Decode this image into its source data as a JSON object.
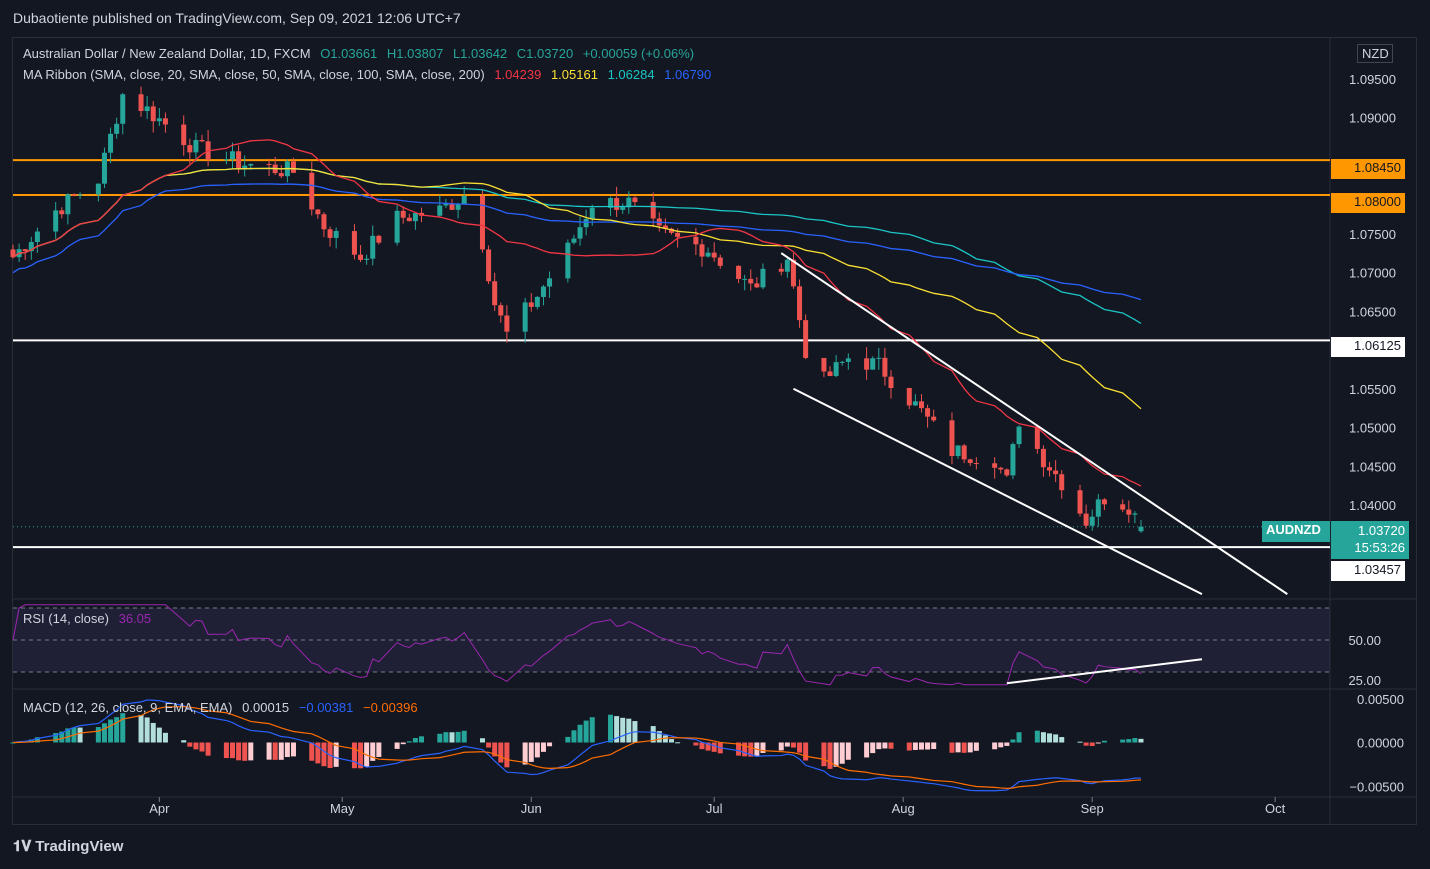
{
  "header": {
    "publisher": "Dubaotiente published on TradingView.com, Sep 09, 2021 12:06 UTC+7"
  },
  "legend": {
    "symbol_line": "Australian Dollar / New Zealand Dollar, 1D, FXCM",
    "o": "O1.03661",
    "h": "H1.03807",
    "l": "L1.03642",
    "c": "C1.03720",
    "chg": "+0.00059 (+0.06%)",
    "ma_line": "MA Ribbon (SMA, close, 20, SMA, close, 50, SMA, close, 100, SMA, close, 200)",
    "ma20": "1.04239",
    "ma50": "1.05161",
    "ma100": "1.06284",
    "ma200": "1.06790",
    "rsi_line": "RSI (14, close)",
    "rsi_val": "36.05",
    "macd_line": "MACD (12, 26, close, 9, EMA, EMA)",
    "macd_hist": "0.00015",
    "macd_val": "−0.00381",
    "macd_sig": "−0.00396"
  },
  "price_axis": {
    "currency": "NZD",
    "ticks": [
      "1.09500",
      "1.09000",
      "1.07500",
      "1.07000",
      "1.06500",
      "1.05500",
      "1.05000",
      "1.04500",
      "1.04000"
    ],
    "tick_values": [
      1.095,
      1.09,
      1.075,
      1.07,
      1.065,
      1.055,
      1.05,
      1.045,
      1.04
    ],
    "level_labels": [
      "1.08450",
      "1.08000",
      "1.06125",
      "1.03457"
    ],
    "last_symbol": "AUDNZD",
    "last_price": "1.03720",
    "countdown": "15:53:26"
  },
  "rsi_axis": {
    "ticks": [
      "50.00",
      "25.00"
    ],
    "tick_values": [
      50,
      25
    ]
  },
  "macd_axis": {
    "ticks": [
      "0.00500",
      "0.00000",
      "−0.00500"
    ],
    "tick_values": [
      0.005,
      0,
      -0.005
    ]
  },
  "time_axis": {
    "labels": [
      "Apr",
      "May",
      "Jun",
      "Jul",
      "Aug",
      "Sep",
      "Oct"
    ]
  },
  "footer": {
    "brand": "TradingView"
  },
  "colors": {
    "bg": "#131722",
    "up": "#26a69a",
    "down": "#ef5350",
    "ma20": "#f23645",
    "ma50": "#fbe034",
    "ma100": "#1cc5c5",
    "ma200": "#2962ff",
    "orange": "#ff9800",
    "rsi": "#9c27b0",
    "macd": "#2962ff",
    "signal": "#ff6d00"
  },
  "chart_data": {
    "type": "candlestick",
    "title": "Australian Dollar / New Zealand Dollar, 1D, FXCM",
    "x_range": [
      "2021-03-08",
      "2021-10-10"
    ],
    "ylim": [
      1.028,
      1.1
    ],
    "horizontal_levels": [
      1.0845,
      1.08,
      1.06125,
      1.03457
    ],
    "trendlines": [
      {
        "name": "channel-upper",
        "from": [
          "2021-07-12",
          1.0725
        ],
        "to": [
          "2021-10-03",
          1.0285
        ]
      },
      {
        "name": "channel-lower",
        "from": [
          "2021-07-14",
          1.055
        ],
        "to": [
          "2021-09-19",
          1.0285
        ]
      }
    ],
    "last_close": 1.0372,
    "rsi": {
      "length": 14,
      "last": 36.05,
      "ylim": [
        20,
        75
      ],
      "bands": [
        70,
        50,
        30
      ]
    },
    "macd": {
      "fast": 12,
      "slow": 26,
      "signal": 9,
      "last_hist": 0.00015,
      "last_macd": -0.00381,
      "last_signal": -0.00396,
      "ylim": [
        -0.006,
        0.006
      ]
    }
  }
}
